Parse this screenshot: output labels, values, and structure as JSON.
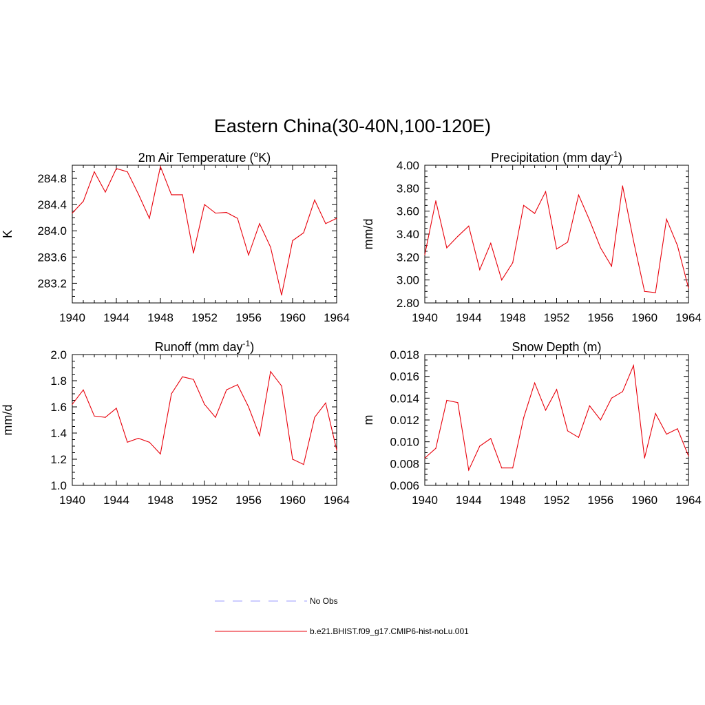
{
  "title": "Eastern China(30-40N,100-120E)",
  "colors": {
    "model": "#e8000b",
    "obs": "#9999ff",
    "axis": "#000000"
  },
  "legend": {
    "items": [
      {
        "label": "No Obs",
        "style": "dashed",
        "color": "#9999ff"
      },
      {
        "label": "b.e21.BHIST.f09_g17.CMIP6-hist-noLu.001",
        "style": "solid",
        "color": "#e8000b"
      }
    ]
  },
  "chart_data": [
    {
      "type": "line",
      "title": "2m Air Temperature (",
      "title_sup": "o",
      "title_tail": "K)",
      "ylabel": "K",
      "xlim": [
        1940,
        1964
      ],
      "ylim": [
        282.9,
        285.0
      ],
      "xticks": [
        "1940",
        "1944",
        "1948",
        "1952",
        "1956",
        "1960",
        "1964"
      ],
      "yticks": [
        "283.2",
        "283.6",
        "284.0",
        "284.4",
        "284.8"
      ],
      "x": [
        1940,
        1941,
        1942,
        1943,
        1944,
        1945,
        1946,
        1947,
        1948,
        1949,
        1950,
        1951,
        1952,
        1953,
        1954,
        1955,
        1956,
        1957,
        1958,
        1959,
        1960,
        1961,
        1962,
        1963,
        1964
      ],
      "series": [
        {
          "name": "b.e21.BHIST.f09_g17.CMIP6-hist-noLu.001",
          "values": [
            284.27,
            284.45,
            284.9,
            284.59,
            284.95,
            284.9,
            284.56,
            284.19,
            284.98,
            284.55,
            284.55,
            283.66,
            284.4,
            284.27,
            284.28,
            284.19,
            283.63,
            284.11,
            283.75,
            283.02,
            283.85,
            283.97,
            284.47,
            284.11,
            284.19
          ]
        }
      ]
    },
    {
      "type": "line",
      "title": "Precipitation (mm day",
      "title_sup": "-1",
      "title_tail": ")",
      "ylabel": "mm/d",
      "xlim": [
        1940,
        1964
      ],
      "ylim": [
        2.8,
        4.0
      ],
      "xticks": [
        "1940",
        "1944",
        "1948",
        "1952",
        "1956",
        "1960",
        "1964"
      ],
      "yticks": [
        "2.80",
        "3.00",
        "3.20",
        "3.40",
        "3.60",
        "3.80",
        "4.00"
      ],
      "x": [
        1940,
        1941,
        1942,
        1943,
        1944,
        1945,
        1946,
        1947,
        1948,
        1949,
        1950,
        1951,
        1952,
        1953,
        1954,
        1955,
        1956,
        1957,
        1958,
        1959,
        1960,
        1961,
        1962,
        1963,
        1964
      ],
      "series": [
        {
          "name": "b.e21.BHIST.f09_g17.CMIP6-hist-noLu.001",
          "values": [
            3.22,
            3.69,
            3.28,
            3.38,
            3.47,
            3.09,
            3.32,
            3.0,
            3.15,
            3.65,
            3.58,
            3.77,
            3.27,
            3.33,
            3.74,
            3.52,
            3.28,
            3.12,
            3.82,
            3.34,
            2.9,
            2.89,
            3.53,
            3.3,
            2.93
          ]
        }
      ]
    },
    {
      "type": "line",
      "title": "Runoff (mm day",
      "title_sup": "-1",
      "title_tail": ")",
      "ylabel": "mm/d",
      "xlim": [
        1940,
        1964
      ],
      "ylim": [
        1.0,
        2.0
      ],
      "xticks": [
        "1940",
        "1944",
        "1948",
        "1952",
        "1956",
        "1960",
        "1964"
      ],
      "yticks": [
        "1.0",
        "1.2",
        "1.4",
        "1.6",
        "1.8",
        "2.0"
      ],
      "x": [
        1940,
        1941,
        1942,
        1943,
        1944,
        1945,
        1946,
        1947,
        1948,
        1949,
        1950,
        1951,
        1952,
        1953,
        1954,
        1955,
        1956,
        1957,
        1958,
        1959,
        1960,
        1961,
        1962,
        1963,
        1964
      ],
      "series": [
        {
          "name": "b.e21.BHIST.f09_g17.CMIP6-hist-noLu.001",
          "values": [
            1.62,
            1.73,
            1.53,
            1.52,
            1.59,
            1.33,
            1.36,
            1.33,
            1.24,
            1.7,
            1.83,
            1.81,
            1.62,
            1.52,
            1.73,
            1.77,
            1.6,
            1.38,
            1.87,
            1.76,
            1.2,
            1.16,
            1.52,
            1.63,
            1.27
          ]
        }
      ]
    },
    {
      "type": "line",
      "title": "Snow Depth (m)",
      "title_sup": "",
      "title_tail": "",
      "ylabel": "m",
      "xlim": [
        1940,
        1964
      ],
      "ylim": [
        0.006,
        0.018
      ],
      "xticks": [
        "1940",
        "1944",
        "1948",
        "1952",
        "1956",
        "1960",
        "1964"
      ],
      "yticks": [
        "0.006",
        "0.008",
        "0.010",
        "0.012",
        "0.014",
        "0.016",
        "0.018"
      ],
      "x": [
        1940,
        1941,
        1942,
        1943,
        1944,
        1945,
        1946,
        1947,
        1948,
        1949,
        1950,
        1951,
        1952,
        1953,
        1954,
        1955,
        1956,
        1957,
        1958,
        1959,
        1960,
        1961,
        1962,
        1963,
        1964
      ],
      "series": [
        {
          "name": "b.e21.BHIST.f09_g17.CMIP6-hist-noLu.001",
          "values": [
            0.0085,
            0.0094,
            0.0138,
            0.0136,
            0.0074,
            0.0096,
            0.0103,
            0.0076,
            0.0076,
            0.0122,
            0.0154,
            0.0129,
            0.0148,
            0.011,
            0.0104,
            0.0133,
            0.012,
            0.014,
            0.0146,
            0.017,
            0.0085,
            0.0126,
            0.0107,
            0.0112,
            0.0087
          ]
        }
      ]
    }
  ]
}
